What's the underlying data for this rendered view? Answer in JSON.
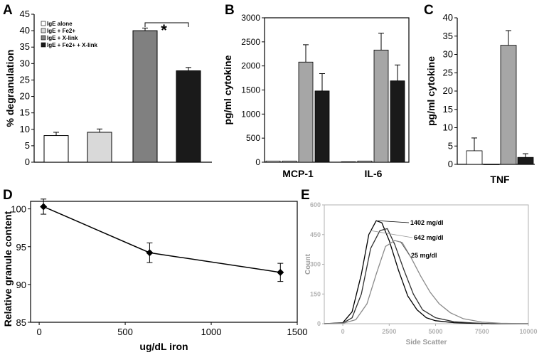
{
  "chart_data": [
    {
      "panel": "A",
      "type": "bar",
      "ylabel": "% degranulation",
      "ylim": [
        0,
        45
      ],
      "yticks": [
        0,
        5,
        10,
        15,
        20,
        25,
        30,
        35,
        40,
        45
      ],
      "legend": [
        "IgE alone",
        "IgE + Fe2+",
        "IgE + X-link",
        "IgE + Fe2+ + X-link"
      ],
      "bars": [
        {
          "name": "IgE alone",
          "value": 8.1,
          "error": 1.0,
          "color": "#ffffff"
        },
        {
          "name": "IgE + Fe2+",
          "value": 9.1,
          "error": 1.0,
          "color": "#d9d9d9"
        },
        {
          "name": "IgE + X-link",
          "value": 40.0,
          "error": 0.8,
          "color": "#808080"
        },
        {
          "name": "IgE + Fe2+ + X-link",
          "value": 27.8,
          "error": 1.0,
          "color": "#1a1a1a"
        }
      ],
      "annotation": "*"
    },
    {
      "panel": "B",
      "type": "bar",
      "ylabel": "pg/ml cytokine",
      "ylim": [
        0,
        3000
      ],
      "yticks": [
        0,
        500,
        1000,
        1500,
        2000,
        2500,
        3000
      ],
      "categories": [
        "MCP-1",
        "IL-6"
      ],
      "series": [
        {
          "name": "IgE alone",
          "color": "#ffffff",
          "values": [
            25,
            10
          ],
          "errors": [
            0,
            0
          ]
        },
        {
          "name": "IgE + Fe2+",
          "color": "#d9d9d9",
          "values": [
            25,
            25
          ],
          "errors": [
            0,
            0
          ]
        },
        {
          "name": "IgE + X-link",
          "color": "#a6a6a6",
          "values": [
            2080,
            2330
          ],
          "errors": [
            360,
            350
          ]
        },
        {
          "name": "IgE + Fe2+ + X-link",
          "color": "#1a1a1a",
          "values": [
            1480,
            1690
          ],
          "errors": [
            360,
            330
          ]
        }
      ]
    },
    {
      "panel": "C",
      "type": "bar",
      "ylabel": "pg/ml cytokine",
      "ylim": [
        0,
        40
      ],
      "yticks": [
        0,
        5,
        10,
        15,
        20,
        25,
        30,
        35,
        40
      ],
      "categories": [
        "TNF"
      ],
      "series": [
        {
          "name": "IgE alone",
          "color": "#ffffff",
          "values": [
            3.7
          ],
          "errors": [
            3.5
          ]
        },
        {
          "name": "IgE + Fe2+",
          "color": "#d9d9d9",
          "values": [
            0
          ],
          "errors": [
            0
          ]
        },
        {
          "name": "IgE + X-link",
          "color": "#a6a6a6",
          "values": [
            32.5
          ],
          "errors": [
            4.0
          ]
        },
        {
          "name": "IgE + Fe2+ + X-link",
          "color": "#1a1a1a",
          "values": [
            1.9
          ],
          "errors": [
            1.0
          ]
        }
      ]
    },
    {
      "panel": "D",
      "type": "line",
      "xlabel": "ug/dL iron",
      "ylabel": "Relative granule content",
      "xlim": [
        -50,
        1500
      ],
      "ylim": [
        85,
        101
      ],
      "xticks": [
        0,
        500,
        1000,
        1500
      ],
      "yticks": [
        85,
        90,
        95,
        100
      ],
      "x": [
        25,
        642,
        1402
      ],
      "y": [
        100.3,
        94.2,
        91.6
      ],
      "errors": [
        1.0,
        1.3,
        1.2
      ]
    },
    {
      "panel": "E",
      "type": "line",
      "xlabel": "Side Scatter",
      "ylabel": "Count",
      "xlim": [
        -1000,
        10000
      ],
      "ylim": [
        0,
        600
      ],
      "xticks": [
        0,
        2500,
        5000,
        7500,
        10000
      ],
      "yticks": [
        0,
        150,
        300,
        450,
        600
      ],
      "series": [
        {
          "name": "1402 mg/dl",
          "color": "#000000",
          "x": [
            -1000,
            0,
            500,
            1000,
            1400,
            1800,
            2100,
            2500,
            3000,
            3500,
            4000,
            4500,
            5000,
            6000,
            7000,
            8000,
            10000
          ],
          "y": [
            0,
            5,
            60,
            250,
            450,
            520,
            510,
            420,
            270,
            140,
            70,
            30,
            15,
            5,
            2,
            0,
            0
          ]
        },
        {
          "name": "642 mg/dl",
          "color": "#303030",
          "x": [
            -1000,
            0,
            500,
            1000,
            1500,
            2000,
            2400,
            2800,
            3300,
            3800,
            4300,
            5000,
            6000,
            7000,
            8000,
            10000
          ],
          "y": [
            0,
            3,
            30,
            150,
            380,
            470,
            480,
            400,
            270,
            150,
            70,
            30,
            10,
            4,
            0,
            0
          ]
        },
        {
          "name": "25 mg/dl",
          "color": "#8a8a8a",
          "x": [
            -1000,
            0,
            700,
            1300,
            1800,
            2300,
            2800,
            3200,
            3700,
            4200,
            4700,
            5200,
            5800,
            6500,
            7500,
            8500,
            10000
          ],
          "y": [
            0,
            2,
            20,
            100,
            250,
            390,
            420,
            410,
            330,
            240,
            160,
            100,
            55,
            25,
            8,
            2,
            0
          ]
        }
      ],
      "annotations": [
        "1402 mg/dl",
        "642 mg/dl",
        "25 mg/dl"
      ]
    }
  ],
  "panel_labels": [
    "A",
    "B",
    "C",
    "D",
    "E"
  ],
  "category_labels": {
    "B": [
      "MCP-1",
      "IL-6"
    ],
    "C": [
      "TNF"
    ]
  }
}
